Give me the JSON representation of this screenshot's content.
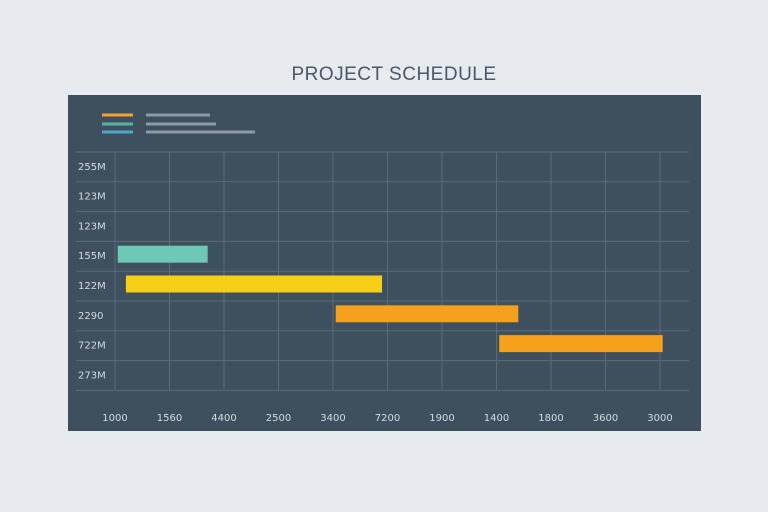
{
  "chart_data": {
    "type": "bar",
    "orientation": "horizontal",
    "title": "PROJECT SCHEDULE",
    "xlabel": "",
    "ylabel": "",
    "x_tick_labels": [
      "1000",
      "1560",
      "4400",
      "2500",
      "3400",
      "7200",
      "1900",
      "1400",
      "1800",
      "3600",
      "3000"
    ],
    "y_tick_labels": [
      "255M",
      "123M",
      "123M",
      "155M",
      "122M",
      "2290",
      "722M",
      "273M"
    ],
    "grid": true,
    "legend": {
      "position": "top-left",
      "entries": [
        "",
        "",
        ""
      ]
    },
    "tasks": [
      {
        "row": 3,
        "start": 0.05,
        "end": 1.7,
        "color": "#6fc7b6"
      },
      {
        "row": 4,
        "start": 0.2,
        "end": 4.9,
        "color": "#f7cf18"
      },
      {
        "row": 5,
        "start": 4.05,
        "end": 7.4,
        "color": "#f6a11c"
      },
      {
        "row": 6,
        "start": 7.05,
        "end": 10.05,
        "color": "#f6a11c"
      }
    ],
    "legend_colors": [
      "#f0a330",
      "#59b3a3",
      "#4fa7cf"
    ]
  }
}
